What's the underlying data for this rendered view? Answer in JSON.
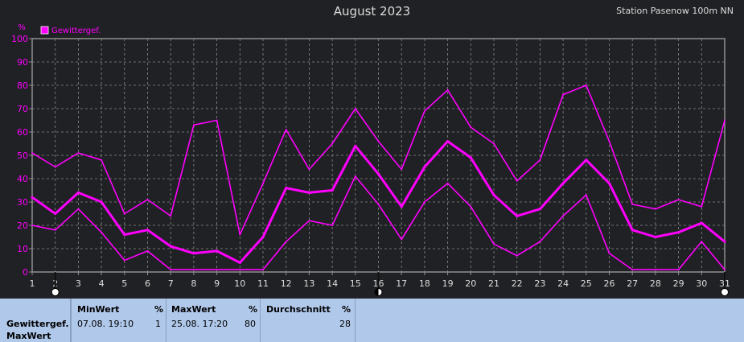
{
  "header": {
    "title": "August 2023",
    "station": "Station Pasenow 100m NN"
  },
  "chart_data": {
    "type": "line",
    "ylabel": "%",
    "ylim": [
      0,
      100
    ],
    "yticks": [
      0,
      10,
      20,
      30,
      40,
      50,
      60,
      70,
      80,
      90,
      100
    ],
    "x": [
      1,
      2,
      3,
      4,
      5,
      6,
      7,
      8,
      9,
      10,
      11,
      12,
      13,
      14,
      15,
      16,
      17,
      18,
      19,
      20,
      21,
      22,
      23,
      24,
      25,
      26,
      27,
      28,
      29,
      30,
      31
    ],
    "legend": "Gewittergef.",
    "grid": true,
    "color": "#ff00ff",
    "series": [
      {
        "role": "max",
        "values": [
          51,
          45,
          51,
          48,
          25,
          31,
          24,
          63,
          65,
          16,
          38,
          61,
          44,
          55,
          70,
          56,
          44,
          69,
          78,
          62,
          55,
          39,
          48,
          76,
          80,
          56,
          29,
          27,
          31,
          28,
          65
        ]
      },
      {
        "role": "avg",
        "values": [
          32,
          25,
          34,
          30,
          16,
          18,
          11,
          8,
          9,
          4,
          15,
          36,
          34,
          35,
          54,
          42,
          28,
          45,
          56,
          49,
          33,
          24,
          27,
          38,
          48,
          38,
          18,
          15,
          17,
          21,
          13
        ]
      },
      {
        "role": "min",
        "values": [
          20,
          18,
          27,
          17,
          5,
          9,
          1,
          1,
          1,
          1,
          1,
          13,
          22,
          20,
          41,
          29,
          14,
          30,
          38,
          28,
          12,
          7,
          13,
          24,
          33,
          8,
          1,
          1,
          1,
          13,
          1
        ]
      }
    ],
    "moon_markers": [
      {
        "day": 2,
        "icon": "full-moon-icon"
      },
      {
        "day": 16,
        "icon": "half-moon-icon"
      },
      {
        "day": 31,
        "icon": "full-moon-icon"
      }
    ]
  },
  "stats": {
    "param_label": "Gewittergef.",
    "param_sub": "MaxWert",
    "min": {
      "header": "MinWert",
      "unit": "%",
      "datetime": "07.08.  19:10",
      "value": "1"
    },
    "max": {
      "header": "MaxWert",
      "unit": "%",
      "datetime": "25.08.  17:20",
      "value": "80"
    },
    "avg": {
      "header": "Durchschnitt",
      "unit": "%",
      "value": "28"
    }
  }
}
